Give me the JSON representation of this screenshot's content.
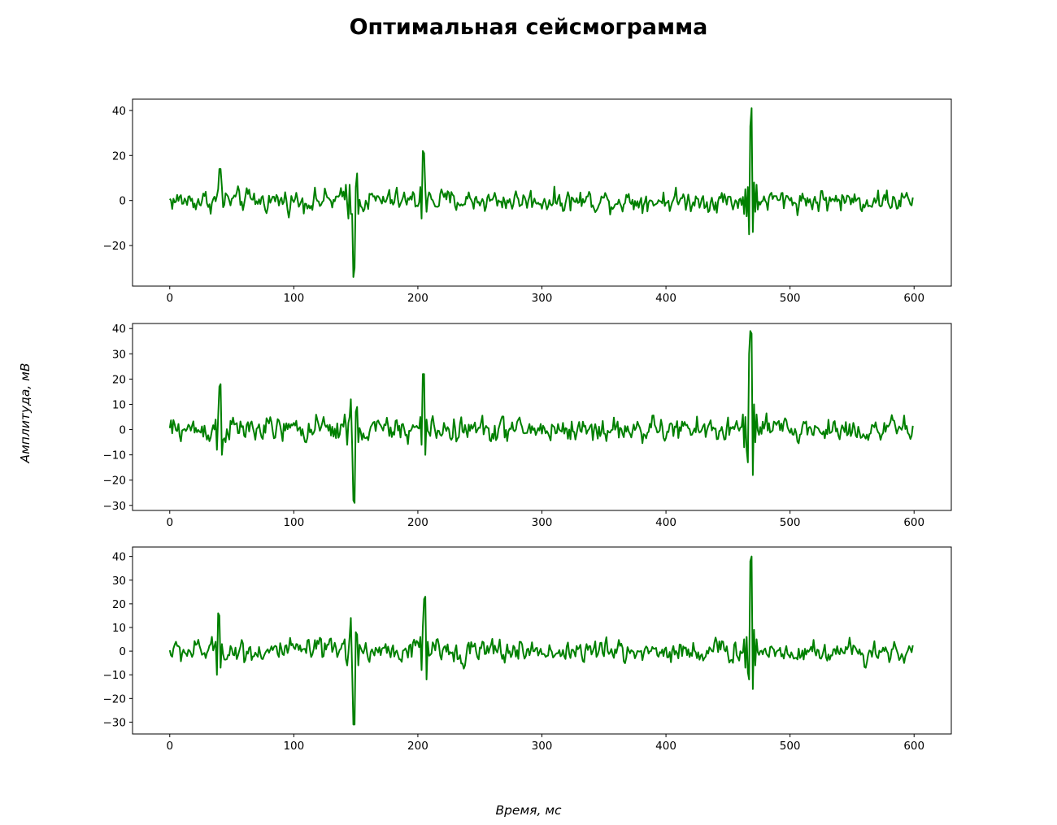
{
  "title": "Оптимальная сейсмограмма",
  "xlabel": "Время, мс",
  "ylabel": "Амплитуда, мВ",
  "line_color": "#008000",
  "chart_data": [
    {
      "type": "line",
      "xlim": [
        -30,
        630
      ],
      "ylim": [
        -38,
        45
      ],
      "xticks": [
        0,
        100,
        200,
        300,
        400,
        500,
        600
      ],
      "yticks": [
        -20,
        0,
        20,
        40
      ],
      "noise_amplitude": 3.5,
      "x_range": [
        0,
        599
      ],
      "events": [
        {
          "t": 40,
          "shape": [
            [
              -1,
              5
            ],
            [
              0,
              14
            ],
            [
              1,
              14
            ],
            [
              2,
              6
            ],
            [
              3,
              -3
            ]
          ]
        },
        {
          "t": 148,
          "shape": [
            [
              -6,
              7
            ],
            [
              -4,
              -8
            ],
            [
              -3,
              7
            ],
            [
              -2,
              -6
            ],
            [
              -1,
              -6
            ],
            [
              0,
              -34
            ],
            [
              1,
              -30
            ],
            [
              2,
              6
            ],
            [
              3,
              12
            ],
            [
              4,
              -6
            ]
          ]
        },
        {
          "t": 204,
          "shape": [
            [
              -2,
              6
            ],
            [
              -1,
              -8
            ],
            [
              0,
              22
            ],
            [
              1,
              21
            ],
            [
              2,
              5
            ],
            [
              3,
              -5
            ]
          ]
        },
        {
          "t": 469,
          "shape": [
            [
              -6,
              -6
            ],
            [
              -5,
              5
            ],
            [
              -4,
              -7
            ],
            [
              -3,
              6
            ],
            [
              -2,
              -15
            ],
            [
              -1,
              33
            ],
            [
              0,
              41
            ],
            [
              1,
              -14
            ],
            [
              2,
              8
            ],
            [
              3,
              -5
            ],
            [
              4,
              7
            ],
            [
              5,
              -4
            ]
          ]
        }
      ]
    },
    {
      "type": "line",
      "xlim": [
        -30,
        630
      ],
      "ylim": [
        -32,
        42
      ],
      "xticks": [
        0,
        100,
        200,
        300,
        400,
        500,
        600
      ],
      "yticks": [
        -30,
        -20,
        -10,
        0,
        10,
        20,
        30,
        40
      ],
      "noise_amplitude": 3.5,
      "x_range": [
        0,
        599
      ],
      "events": [
        {
          "t": 40,
          "shape": [
            [
              -3,
              4
            ],
            [
              -2,
              -8
            ],
            [
              -1,
              5
            ],
            [
              0,
              17
            ],
            [
              1,
              18
            ],
            [
              2,
              -10
            ],
            [
              3,
              -4
            ]
          ]
        },
        {
          "t": 148,
          "shape": [
            [
              -7,
              6
            ],
            [
              -5,
              -6
            ],
            [
              -3,
              5
            ],
            [
              -2,
              12
            ],
            [
              -1,
              -6
            ],
            [
              0,
              -28
            ],
            [
              1,
              -29
            ],
            [
              2,
              7
            ],
            [
              3,
              9
            ],
            [
              4,
              -5
            ]
          ]
        },
        {
          "t": 204,
          "shape": [
            [
              -2,
              5
            ],
            [
              -1,
              -6
            ],
            [
              0,
              22
            ],
            [
              1,
              22
            ],
            [
              2,
              -10
            ],
            [
              3,
              4
            ]
          ]
        },
        {
          "t": 468,
          "shape": [
            [
              -6,
              6
            ],
            [
              -5,
              -7
            ],
            [
              -4,
              5
            ],
            [
              -3,
              -8
            ],
            [
              -2,
              -13
            ],
            [
              -1,
              30
            ],
            [
              0,
              39
            ],
            [
              1,
              38
            ],
            [
              2,
              -18
            ],
            [
              3,
              10
            ],
            [
              4,
              -5
            ],
            [
              5,
              6
            ]
          ]
        }
      ]
    },
    {
      "type": "line",
      "xlim": [
        -30,
        630
      ],
      "ylim": [
        -35,
        44
      ],
      "xticks": [
        0,
        100,
        200,
        300,
        400,
        500,
        600
      ],
      "yticks": [
        -30,
        -20,
        -10,
        0,
        10,
        20,
        30,
        40
      ],
      "noise_amplitude": 3.5,
      "x_range": [
        0,
        599
      ],
      "events": [
        {
          "t": 39,
          "shape": [
            [
              -2,
              4
            ],
            [
              -1,
              -10
            ],
            [
              0,
              16
            ],
            [
              1,
              15
            ],
            [
              2,
              -7
            ],
            [
              3,
              3
            ]
          ]
        },
        {
          "t": 148,
          "shape": [
            [
              -7,
              5
            ],
            [
              -5,
              -6
            ],
            [
              -3,
              6
            ],
            [
              -2,
              14
            ],
            [
              -1,
              -8
            ],
            [
              0,
              -31
            ],
            [
              1,
              -31
            ],
            [
              2,
              8
            ],
            [
              3,
              7
            ],
            [
              4,
              -6
            ]
          ]
        },
        {
          "t": 205,
          "shape": [
            [
              -3,
              6
            ],
            [
              -2,
              -8
            ],
            [
              -1,
              10
            ],
            [
              0,
              22
            ],
            [
              1,
              23
            ],
            [
              2,
              -12
            ],
            [
              3,
              4
            ]
          ]
        },
        {
          "t": 469,
          "shape": [
            [
              -6,
              5
            ],
            [
              -5,
              -7
            ],
            [
              -4,
              6
            ],
            [
              -3,
              -9
            ],
            [
              -2,
              -12
            ],
            [
              -1,
              38
            ],
            [
              0,
              40
            ],
            [
              1,
              -16
            ],
            [
              2,
              9
            ],
            [
              3,
              -6
            ],
            [
              4,
              5
            ]
          ]
        }
      ]
    }
  ]
}
